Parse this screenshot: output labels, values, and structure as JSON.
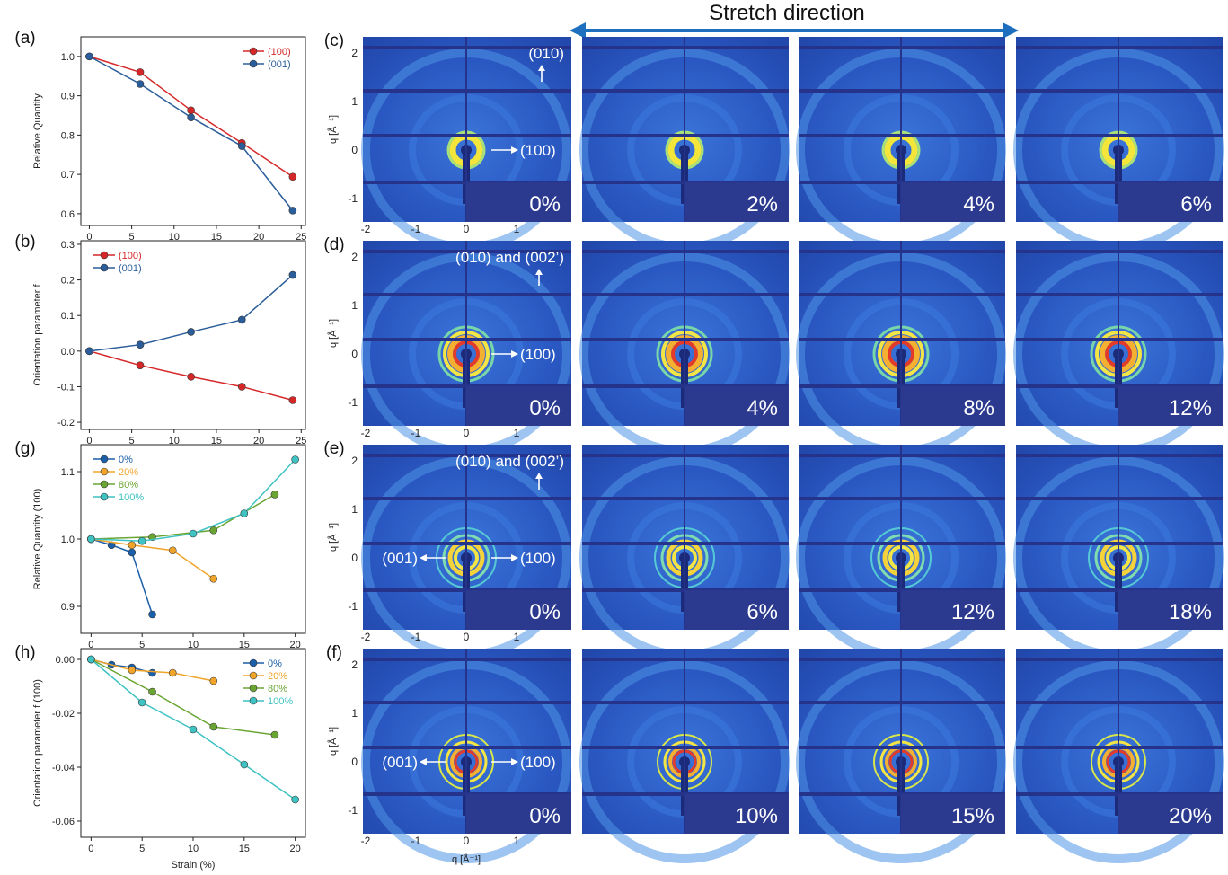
{
  "stretch_label": "Stretch direction",
  "colors": {
    "red": "#d62728",
    "blue": "#2a5d9a",
    "dblue": "#1b5fa8",
    "orange": "#f0a52a",
    "green": "#6aa533",
    "cyan": "#3ec2c2",
    "arrow": "#1f6fbf",
    "detector": "#2b3a8f"
  },
  "chart_data": [
    {
      "id": "a",
      "panel_label": "(a)",
      "type": "line",
      "xlabel": "",
      "ylabel": "Relative Quantity",
      "x": [
        0,
        6,
        12,
        18,
        24
      ],
      "xticks": [
        0,
        5,
        10,
        15,
        20,
        25
      ],
      "xlim": [
        -1,
        25.5
      ],
      "ylim": [
        0.57,
        1.05
      ],
      "yticks": [
        0.6,
        0.7,
        0.8,
        0.9,
        1.0
      ],
      "ytick_labels": [
        "0.6",
        "0.7",
        "0.8",
        "0.9",
        "1.0"
      ],
      "legend": "top-right",
      "series": [
        {
          "name": "(100)",
          "color": "#d62728",
          "values": [
            1.0,
            0.96,
            0.863,
            0.78,
            0.694
          ]
        },
        {
          "name": "(001)",
          "color": "#2a5d9a",
          "values": [
            1.0,
            0.93,
            0.845,
            0.772,
            0.608
          ]
        }
      ]
    },
    {
      "id": "b",
      "panel_label": "(b)",
      "type": "line",
      "xlabel": "",
      "ylabel": "Orientation parameter f",
      "x": [
        0,
        6,
        12,
        18,
        24
      ],
      "xticks": [
        0,
        5,
        10,
        15,
        20,
        25
      ],
      "xlim": [
        -1,
        25.5
      ],
      "ylim": [
        -0.22,
        0.31
      ],
      "yticks": [
        -0.2,
        -0.1,
        0.0,
        0.1,
        0.2,
        0.3
      ],
      "ytick_labels": [
        "-0.2",
        "-0.1",
        "0.0",
        "0.1",
        "0.2",
        "0.3"
      ],
      "legend": "top-left",
      "series": [
        {
          "name": "(100)",
          "color": "#d62728",
          "values": [
            0.0,
            -0.04,
            -0.072,
            -0.1,
            -0.138
          ]
        },
        {
          "name": "(001)",
          "color": "#2a5d9a",
          "values": [
            0.0,
            0.018,
            0.054,
            0.088,
            0.214
          ]
        }
      ]
    },
    {
      "id": "g",
      "panel_label": "(g)",
      "type": "line",
      "xlabel": "",
      "ylabel": "Relative Quantity (100)",
      "xticks": [
        0,
        5,
        10,
        15,
        20
      ],
      "xlim": [
        -1,
        21
      ],
      "ylim": [
        0.86,
        1.14
      ],
      "yticks": [
        0.9,
        1.0,
        1.1
      ],
      "ytick_labels": [
        "0.9",
        "1.0",
        "1.1"
      ],
      "legend": "top-left",
      "series": [
        {
          "name": "0%",
          "color": "#1b5fa8",
          "x": [
            0,
            2,
            4,
            6
          ],
          "values": [
            1.0,
            0.991,
            0.98,
            0.888
          ]
        },
        {
          "name": "20%",
          "color": "#f0a52a",
          "x": [
            0,
            4,
            8,
            12
          ],
          "values": [
            1.0,
            0.991,
            0.983,
            0.941
          ]
        },
        {
          "name": "80%",
          "color": "#6aa533",
          "x": [
            0,
            6,
            12,
            18
          ],
          "values": [
            1.0,
            1.003,
            1.013,
            1.066
          ]
        },
        {
          "name": "100%",
          "color": "#3ec2c2",
          "x": [
            0,
            5,
            10,
            15,
            20
          ],
          "values": [
            1.0,
            0.997,
            1.008,
            1.038,
            1.118
          ]
        }
      ]
    },
    {
      "id": "h",
      "panel_label": "(h)",
      "type": "line",
      "xlabel": "Strain (%)",
      "ylabel": "Orientation parameter f (100)",
      "xticks": [
        0,
        5,
        10,
        15,
        20
      ],
      "xlim": [
        -1,
        21
      ],
      "ylim": [
        -0.066,
        0.004
      ],
      "yticks": [
        -0.06,
        -0.04,
        -0.02,
        0.0
      ],
      "ytick_labels": [
        "-0.06",
        "-0.04",
        "-0.02",
        "0.00"
      ],
      "legend": "top-right",
      "series": [
        {
          "name": "0%",
          "color": "#1b5fa8",
          "x": [
            0,
            2,
            4,
            6
          ],
          "values": [
            0.0,
            -0.002,
            -0.003,
            -0.005
          ]
        },
        {
          "name": "20%",
          "color": "#f0a52a",
          "x": [
            0,
            4,
            8,
            12
          ],
          "values": [
            0.0,
            -0.004,
            -0.005,
            -0.008
          ]
        },
        {
          "name": "80%",
          "color": "#6aa533",
          "x": [
            0,
            6,
            12,
            18
          ],
          "values": [
            0.0,
            -0.012,
            -0.025,
            -0.028
          ]
        },
        {
          "name": "100%",
          "color": "#3ec2c2",
          "x": [
            0,
            5,
            10,
            15,
            20
          ],
          "values": [
            0.0,
            -0.016,
            -0.026,
            -0.039,
            -0.052
          ]
        }
      ]
    }
  ],
  "waxs": {
    "axis_label": "q [Å⁻¹]",
    "rows": [
      {
        "id": "c",
        "panel_label": "(c)",
        "strains": [
          "0%",
          "2%",
          "4%",
          "6%"
        ],
        "yticks": [
          "2",
          "1",
          "0",
          "-1"
        ],
        "xticks": [
          "-2",
          "-1",
          "0",
          "1"
        ],
        "ann_top": "(010)",
        "ann_right": "(100)",
        "ann_left": "",
        "rings": "c"
      },
      {
        "id": "d",
        "panel_label": "(d)",
        "strains": [
          "0%",
          "4%",
          "8%",
          "12%"
        ],
        "yticks": [
          "2",
          "1",
          "0",
          "-1"
        ],
        "xticks": [
          "-2",
          "-1",
          "0",
          "1"
        ],
        "ann_top": "(010) and (002’)",
        "ann_right": "(100)",
        "ann_left": "",
        "rings": "d"
      },
      {
        "id": "e",
        "panel_label": "(e)",
        "strains": [
          "0%",
          "6%",
          "12%",
          "18%"
        ],
        "yticks": [
          "2",
          "1",
          "0",
          "-1"
        ],
        "xticks": [
          "-2",
          "-1",
          "0",
          "1"
        ],
        "ann_top": "(010) and (002’)",
        "ann_right": "(100)",
        "ann_left": "(001)",
        "rings": "e"
      },
      {
        "id": "f",
        "panel_label": "(f)",
        "strains": [
          "0%",
          "10%",
          "15%",
          "20%"
        ],
        "yticks": [
          "2",
          "1",
          "0",
          "-1"
        ],
        "xticks": [
          "-2",
          "-1",
          "0",
          "1"
        ],
        "ann_top": "",
        "ann_right": "(100)",
        "ann_left": "(001)",
        "rings": "f"
      }
    ]
  }
}
